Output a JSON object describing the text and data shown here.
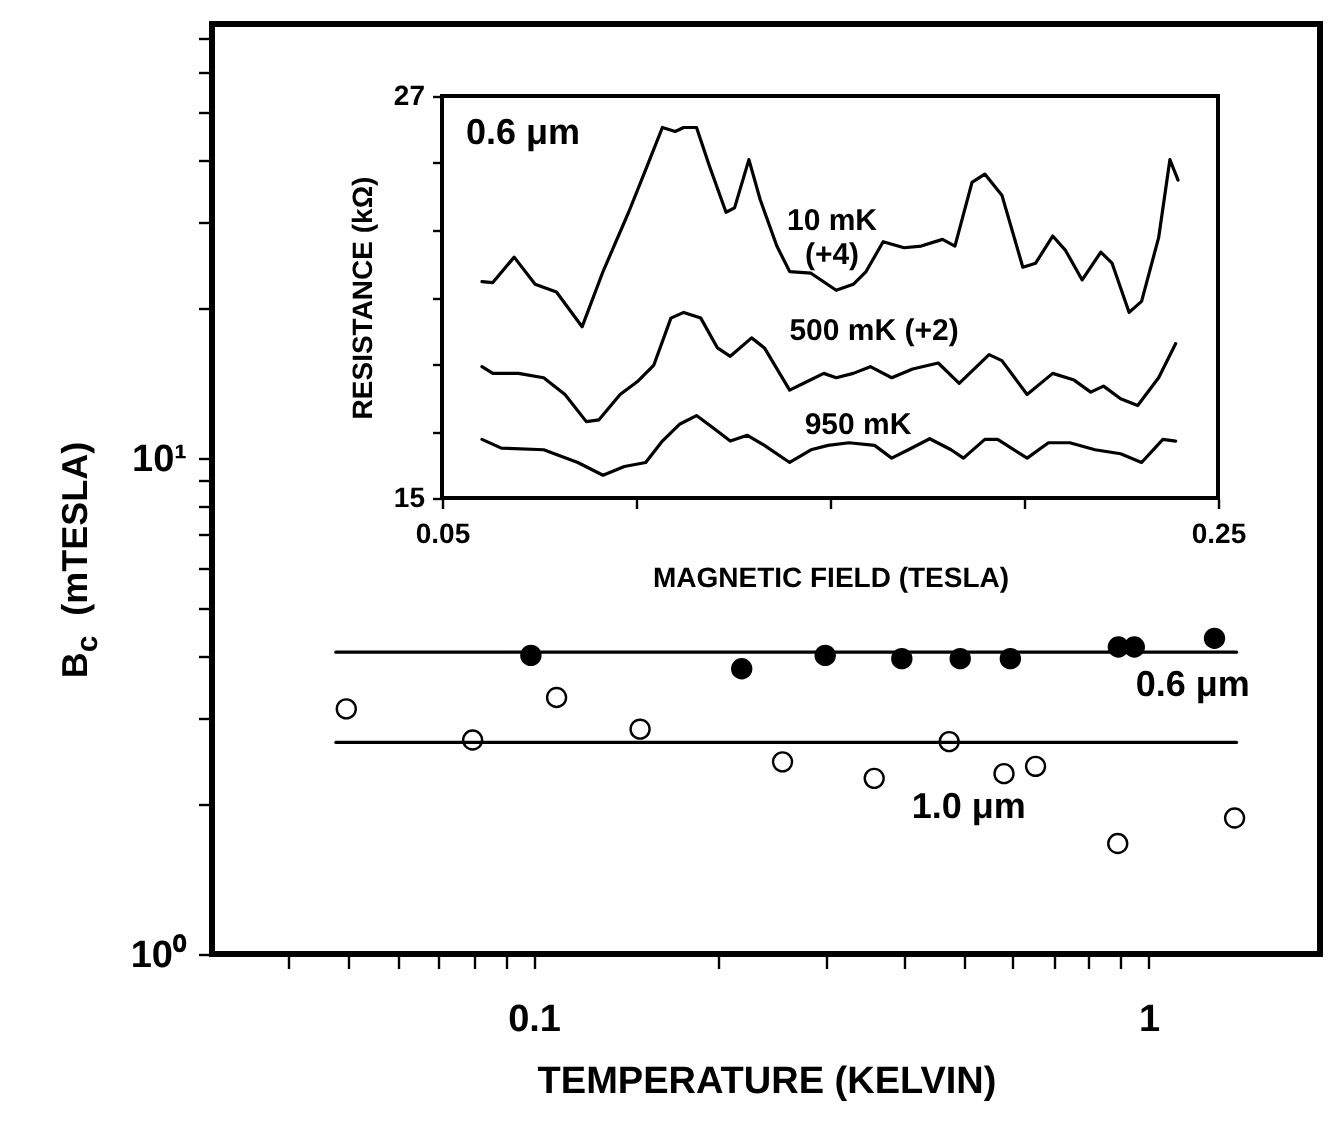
{
  "chart_data": [
    {
      "type": "scatter",
      "xlabel": "TEMPERATURE    (KELVIN)",
      "ylabel": "B$_{c}$  (mTESLA)",
      "log": "xy",
      "grid": false,
      "xlim": [
        0.03,
        1.9
      ],
      "ylim": [
        1,
        75
      ],
      "xticks": [
        {
          "value": 0.04,
          "label": null
        },
        {
          "value": 0.05,
          "label": null
        },
        {
          "value": 0.06,
          "label": null
        },
        {
          "value": 0.07,
          "label": null
        },
        {
          "value": 0.08,
          "label": null
        },
        {
          "value": 0.09,
          "label": null
        },
        0.1,
        {
          "value": 0.2,
          "label": null
        },
        {
          "value": 0.3,
          "label": null
        },
        {
          "value": 0.4,
          "label": null
        },
        {
          "value": 0.5,
          "label": null
        },
        {
          "value": 0.6,
          "label": null
        },
        {
          "value": 0.7,
          "label": null
        },
        {
          "value": 0.8,
          "label": null
        },
        {
          "value": 0.9,
          "label": null
        },
        1
      ],
      "yticks": [
        {
          "value": 1,
          "label": "10⁰"
        },
        {
          "value": 2,
          "label": null
        },
        {
          "value": 3,
          "label": null
        },
        {
          "value": 4,
          "label": null
        },
        {
          "value": 5,
          "label": null
        },
        {
          "value": 6,
          "label": null
        },
        {
          "value": 7,
          "label": null
        },
        {
          "value": 8,
          "label": null
        },
        {
          "value": 9,
          "label": null
        },
        {
          "value": 10,
          "label": "10¹"
        },
        {
          "value": 20,
          "label": null
        },
        {
          "value": 30,
          "label": null
        },
        {
          "value": 40,
          "label": null
        },
        {
          "value": 50,
          "label": null
        },
        {
          "value": 60,
          "label": null
        },
        {
          "value": 70,
          "label": null
        }
      ],
      "series": [
        {
          "marker": "circle",
          "color": "#000000",
          "x": [
            0.099,
            0.218,
            0.298,
            0.397,
            0.494,
            0.596,
            0.893,
            0.948,
            1.28
          ],
          "values": [
            4.0,
            3.76,
            4.0,
            3.94,
            3.94,
            3.94,
            4.16,
            4.16,
            4.33
          ]
        },
        {
          "marker": "circle",
          "color": "#ffffff",
          "x": [
            0.0496,
            0.0796,
            0.109,
            0.149,
            0.254,
            0.358,
            0.474,
            0.582,
            0.655,
            0.891,
            1.38
          ],
          "values": [
            3.12,
            2.7,
            3.29,
            2.84,
            2.44,
            2.26,
            2.68,
            2.31,
            2.39,
            1.67,
            1.88
          ]
        },
        {
          "type": "line",
          "color": "#000000",
          "x": [
            0.0477,
            1.39
          ],
          "values": [
            4.06,
            4.06
          ]
        },
        {
          "type": "line",
          "color": "#000000",
          "x": [
            0.0477,
            1.39
          ],
          "values": [
            2.67,
            2.67
          ]
        }
      ],
      "annotations": [
        {
          "text": "0.6  μm",
          "x": 1.18,
          "y": 4.06
        },
        {
          "text": "1.0  μm",
          "x": 0.51,
          "y": 2.67
        }
      ]
    },
    {
      "type": "line",
      "xlabel": "MAGNETIC    FIELD    (TESLA)",
      "ylabel": "RESISTANCE    (kΩ)",
      "grid": false,
      "xlim": [
        0.05,
        0.25
      ],
      "ylim": [
        15,
        27
      ],
      "xticks": [
        0.05,
        {
          "value": 0.1,
          "label": null
        },
        {
          "value": 0.15,
          "label": null
        },
        {
          "value": 0.2,
          "label": null
        },
        0.25
      ],
      "yticks": [
        15,
        {
          "value": 17,
          "label": null
        },
        {
          "value": 19,
          "label": null
        },
        {
          "value": 21,
          "label": null
        },
        {
          "value": 23,
          "label": null
        },
        {
          "value": 25,
          "label": null
        },
        27
      ],
      "series": [
        {
          "name": "10  mK\n(+4)",
          "color": "#000000",
          "x": [
            0.0603,
            0.0631,
            0.0686,
            0.074,
            0.0795,
            0.0861,
            0.0915,
            0.0981,
            0.1025,
            0.1068,
            0.1101,
            0.1123,
            0.1156,
            0.1189,
            0.1232,
            0.1254,
            0.1291,
            0.132,
            0.1363,
            0.1396,
            0.1451,
            0.1516,
            0.156,
            0.1593,
            0.1637,
            0.1691,
            0.1735,
            0.179,
            0.1822,
            0.1866,
            0.1899,
            0.1943,
            0.1997,
            0.203,
            0.2074,
            0.2107,
            0.215,
            0.2198,
            0.2227,
            0.2271,
            0.2303,
            0.2347,
            0.2376,
            0.2397
          ],
          "values": [
            21.46,
            21.43,
            22.19,
            21.38,
            21.15,
            20.11,
            21.76,
            23.53,
            24.8,
            26.06,
            25.94,
            26.06,
            26.06,
            24.92,
            23.53,
            23.66,
            25.1,
            23.91,
            22.52,
            21.76,
            21.71,
            21.2,
            21.38,
            21.76,
            22.65,
            22.47,
            22.52,
            22.72,
            22.52,
            24.42,
            24.67,
            24.04,
            21.89,
            22.01,
            22.82,
            22.39,
            21.51,
            22.34,
            22.01,
            20.54,
            20.87,
            22.77,
            25.1,
            24.49
          ]
        },
        {
          "name": "500  mK  (+2)",
          "color": "#000000",
          "x": [
            0.0603,
            0.0631,
            0.0697,
            0.0762,
            0.0817,
            0.0872,
            0.0904,
            0.0959,
            0.1003,
            0.1046,
            0.109,
            0.1123,
            0.1167,
            0.121,
            0.1243,
            0.1298,
            0.1331,
            0.1396,
            0.144,
            0.1484,
            0.1516,
            0.156,
            0.1604,
            0.1659,
            0.1713,
            0.1779,
            0.1833,
            0.191,
            0.1943,
            0.2008,
            0.2074,
            0.2129,
            0.2172,
            0.2205,
            0.2249,
            0.2293,
            0.2347,
            0.2391
          ],
          "values": [
            18.92,
            18.72,
            18.72,
            18.59,
            18.09,
            17.28,
            17.33,
            18.09,
            18.47,
            18.97,
            20.37,
            20.54,
            20.37,
            19.48,
            19.23,
            19.78,
            19.48,
            18.22,
            18.47,
            18.72,
            18.59,
            18.72,
            18.92,
            18.59,
            18.85,
            19.03,
            18.42,
            19.28,
            19.1,
            18.09,
            18.72,
            18.52,
            18.16,
            18.34,
            17.96,
            17.76,
            18.59,
            19.61
          ]
        },
        {
          "name": "950  mK",
          "color": "#000000",
          "x": [
            0.0603,
            0.0653,
            0.0762,
            0.085,
            0.0915,
            0.097,
            0.1025,
            0.1068,
            0.1112,
            0.1156,
            0.12,
            0.1243,
            0.1287,
            0.1331,
            0.1396,
            0.1451,
            0.1495,
            0.1549,
            0.1615,
            0.1659,
            0.1702,
            0.1757,
            0.1812,
            0.1844,
            0.1899,
            0.1932,
            0.2008,
            0.2063,
            0.2118,
            0.2183,
            0.2249,
            0.2303,
            0.2358,
            0.2391
          ],
          "values": [
            16.75,
            16.49,
            16.44,
            16.06,
            15.68,
            15.94,
            16.06,
            16.7,
            17.2,
            17.46,
            17.08,
            16.7,
            16.87,
            16.57,
            16.06,
            16.44,
            16.57,
            16.65,
            16.57,
            16.19,
            16.44,
            16.77,
            16.44,
            16.19,
            16.75,
            16.75,
            16.19,
            16.65,
            16.65,
            16.44,
            16.32,
            16.06,
            16.75,
            16.7
          ]
        }
      ],
      "annotations": [
        "0.6  μm"
      ]
    }
  ]
}
